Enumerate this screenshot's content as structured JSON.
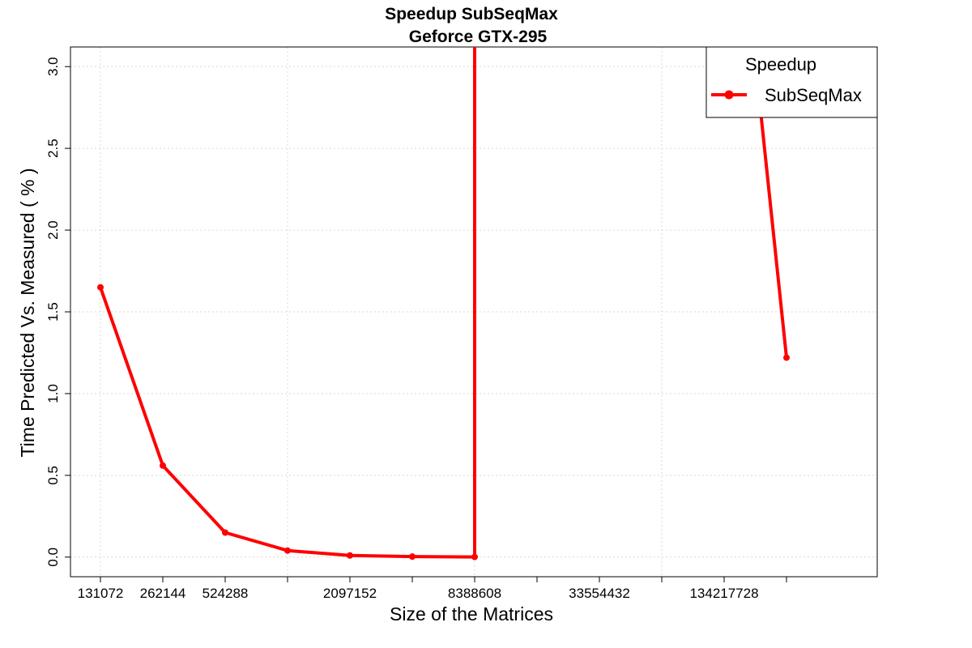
{
  "chart_data": {
    "type": "line",
    "title": "Speedup SubSeqMax",
    "subtitle": "Geforce GTX-295",
    "xlabel": "Size of the Matrices",
    "ylabel": "Time Predicted Vs. Measured ( % )",
    "x_ticks": [
      "131072",
      "262144",
      "524288",
      "1048576",
      "2097152",
      "4194304",
      "8388608",
      "16777216",
      "33554432",
      "67108864",
      "134217728",
      "268435456"
    ],
    "x_tick_labels_shown": [
      "131072",
      "262144",
      "524288",
      "",
      "2097152",
      "",
      "8388608",
      "",
      "33554432",
      "",
      "134217728",
      ""
    ],
    "y_ticks": [
      "0.0",
      "0.5",
      "1.0",
      "1.5",
      "2.0",
      "2.5",
      "3.0"
    ],
    "ylim": [
      -0.12,
      3.12
    ],
    "grid": true,
    "legend": {
      "title": "Speedup",
      "placement": "top-right"
    },
    "series": [
      {
        "name": "SubSeqMax",
        "color": "#ff0000",
        "x": [
          131072,
          262144,
          524288,
          1048576,
          2097152,
          4194304,
          8388608,
          16777216,
          33554432,
          67108864,
          134217728,
          268435456
        ],
        "values": [
          1.65,
          0.56,
          0.15,
          0.04,
          0.01,
          0.003,
          0.001,
          null,
          null,
          null,
          null,
          1.22
        ],
        "note_offscale": [
          null,
          null,
          null,
          null,
          null,
          null,
          null,
          "above",
          "above",
          "above",
          "above",
          null
        ]
      }
    ]
  }
}
